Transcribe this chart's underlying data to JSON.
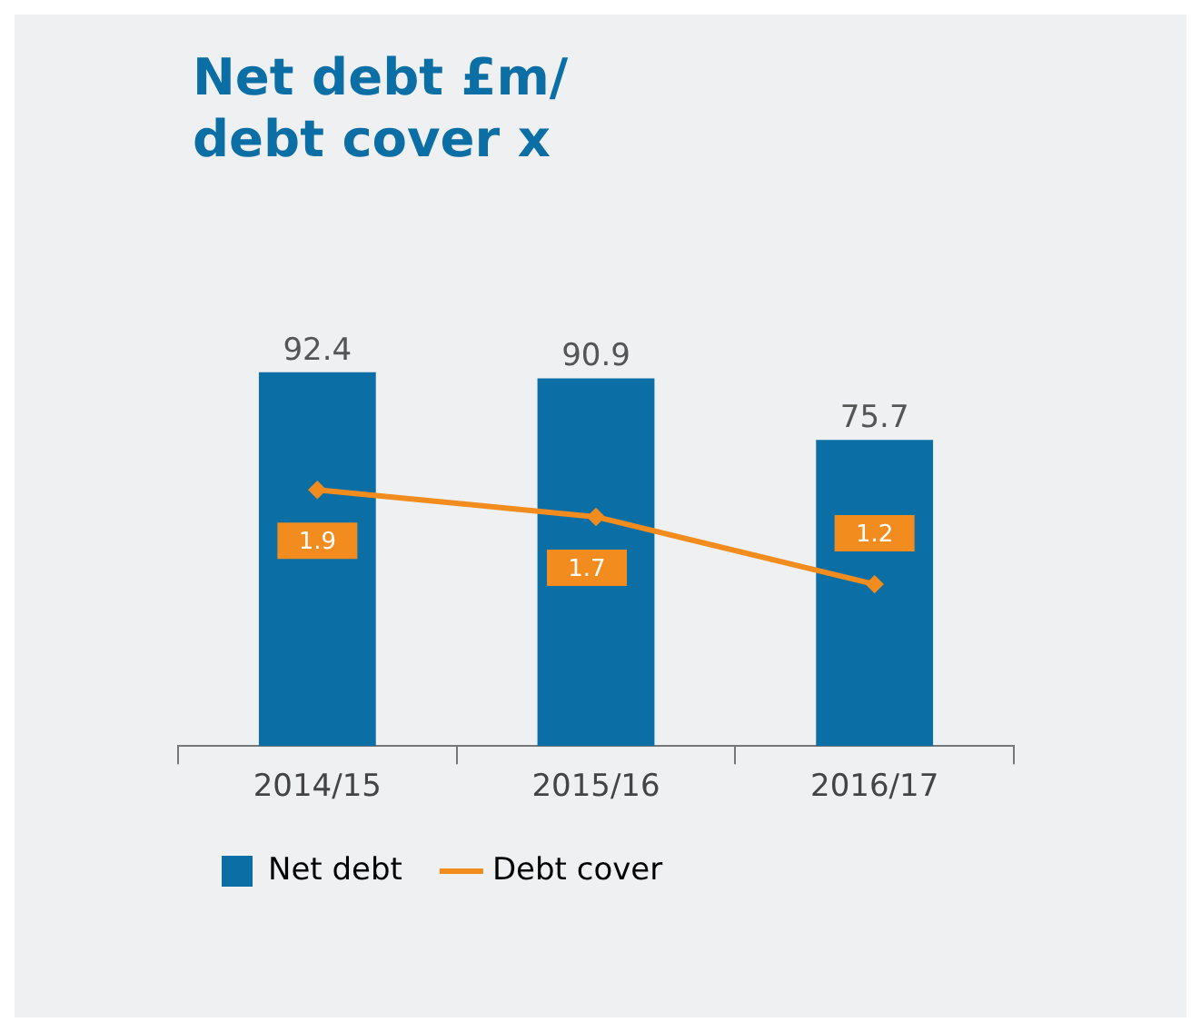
{
  "chart_data": {
    "type": "bar",
    "title": "Net debt £m/\ndebt cover x",
    "categories": [
      "2014/15",
      "2015/16",
      "2016/17"
    ],
    "series": [
      {
        "name": "Net debt",
        "type": "bar",
        "color": "#0b6ea5",
        "values": [
          92.4,
          90.9,
          75.7
        ]
      },
      {
        "name": "Debt cover",
        "type": "line",
        "axis": "y2",
        "color": "#f28c1e",
        "values": [
          1.9,
          1.7,
          1.2
        ],
        "marker": "diamond"
      }
    ],
    "data_labels": true,
    "legend": "bottom",
    "grid": false,
    "tick_labels": "x"
  }
}
